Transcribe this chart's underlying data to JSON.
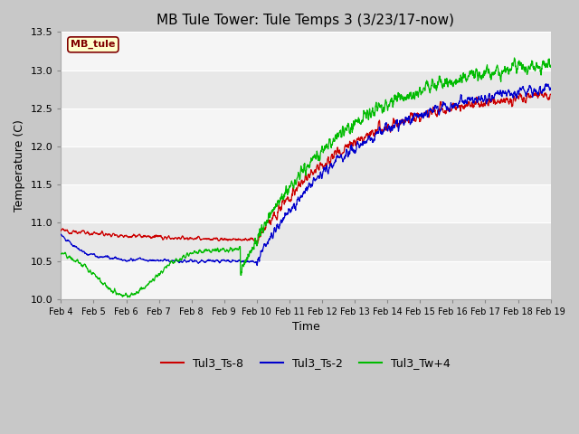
{
  "title": "MB Tule Tower: Tule Temps 3 (3/23/17-now)",
  "xlabel": "Time",
  "ylabel": "Temperature (C)",
  "ylim": [
    10.0,
    13.5
  ],
  "xlim": [
    0,
    15
  ],
  "x_tick_labels": [
    "Feb 4",
    "Feb 5",
    "Feb 6",
    "Feb 7",
    "Feb 8",
    "Feb 9",
    "Feb 10",
    "Feb 11",
    "Feb 12",
    "Feb 13",
    "Feb 14",
    "Feb 15",
    "Feb 16",
    "Feb 17",
    "Feb 18",
    "Feb 19"
  ],
  "x_tick_positions": [
    0,
    1,
    2,
    3,
    4,
    5,
    6,
    7,
    8,
    9,
    10,
    11,
    12,
    13,
    14,
    15
  ],
  "yticks": [
    10.0,
    10.5,
    11.0,
    11.5,
    12.0,
    12.5,
    13.0,
    13.5
  ],
  "line_colors": [
    "#cc0000",
    "#0000cc",
    "#00bb00"
  ],
  "legend_labels": [
    "Tul3_Ts-8",
    "Tul3_Ts-2",
    "Tul3_Tw+4"
  ],
  "watermark_text": "MB_tule",
  "watermark_bg": "#ffffcc",
  "watermark_fg": "#800000",
  "fig_bg": "#c8c8c8",
  "plot_bg": "#e8e8e8",
  "grid_color": "#ffffff",
  "title_fontsize": 11,
  "axis_fontsize": 9,
  "tick_fontsize": 8
}
